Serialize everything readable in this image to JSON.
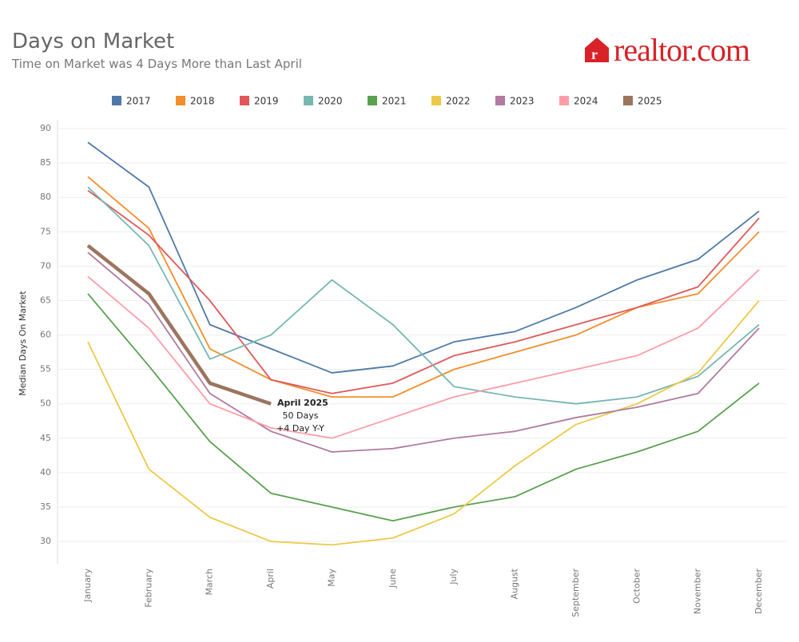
{
  "chart_data": {
    "type": "line",
    "title": "Days on Market",
    "subtitle": "Time on Market was 4 Days More than Last April",
    "logo": "realtor.com",
    "y_label": "Median Days On Market",
    "categories": [
      "January",
      "February",
      "March",
      "April",
      "May",
      "June",
      "July",
      "August",
      "September",
      "October",
      "November",
      "December"
    ],
    "series": [
      {
        "name": "2017",
        "color": "#4e79a7",
        "values": [
          88,
          81.5,
          61.5,
          58,
          54.5,
          55.5,
          59,
          60.5,
          64,
          68,
          71,
          78
        ]
      },
      {
        "name": "2018",
        "color": "#f28e2b",
        "values": [
          83,
          75.5,
          58,
          53.5,
          51,
          51,
          55,
          57.5,
          60,
          64,
          66,
          75
        ]
      },
      {
        "name": "2019",
        "color": "#e15759",
        "values": [
          81,
          74.5,
          65,
          53.5,
          51.5,
          53,
          57,
          59,
          61.5,
          64,
          67,
          77
        ]
      },
      {
        "name": "2020",
        "color": "#76b7b2",
        "values": [
          81.5,
          73,
          56.5,
          60,
          68,
          61.5,
          52.5,
          51,
          50,
          51,
          54,
          61.5
        ]
      },
      {
        "name": "2021",
        "color": "#59a14f",
        "values": [
          66,
          55.5,
          44.5,
          37,
          35,
          33,
          35,
          36.5,
          40.5,
          43,
          46,
          53
        ]
      },
      {
        "name": "2022",
        "color": "#edc948",
        "values": [
          59,
          40.5,
          33.5,
          30,
          29.5,
          30.5,
          34,
          41,
          47,
          50,
          54.5,
          65
        ]
      },
      {
        "name": "2023",
        "color": "#b07aa1",
        "values": [
          72,
          64.5,
          51.5,
          46,
          43,
          43.5,
          45,
          46,
          48,
          49.5,
          51.5,
          61
        ]
      },
      {
        "name": "2024",
        "color": "#ff9da7",
        "values": [
          68.5,
          61,
          50,
          46.5,
          45,
          48,
          51,
          53,
          55,
          57,
          61,
          69.5
        ]
      },
      {
        "name": "2025",
        "color": "#9c755f",
        "values": [
          73,
          66,
          53,
          50,
          null,
          null,
          null,
          null,
          null,
          null,
          null,
          null
        ]
      }
    ],
    "annotation": [
      "April 2025",
      "50 Days",
      "+4 Day Y-Y"
    ],
    "ylim": [
      27,
      91
    ],
    "yticks": [
      30,
      35,
      40,
      45,
      50,
      55,
      60,
      65,
      70,
      75,
      80,
      85,
      90
    ],
    "grid": true,
    "legend": "top"
  }
}
